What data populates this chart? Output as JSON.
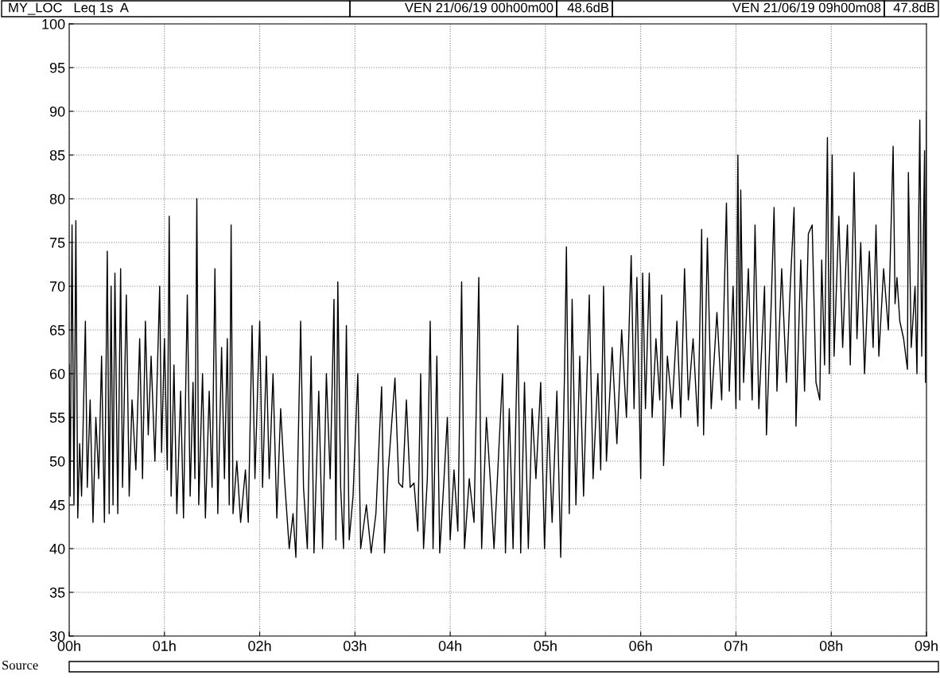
{
  "chart_data": {
    "type": "line",
    "annotations": [
      "MY_LOC   Leq 1s  A",
      "VEN 21/06/19 00h00m00",
      "48.6dB",
      "VEN 21/06/19 09h00m08",
      "47.8dB",
      "Source"
    ],
    "x": [
      0.0,
      0.01,
      0.03,
      0.05,
      0.07,
      0.09,
      0.11,
      0.13,
      0.17,
      0.19,
      0.22,
      0.25,
      0.28,
      0.31,
      0.34,
      0.37,
      0.4,
      0.42,
      0.44,
      0.46,
      0.48,
      0.51,
      0.54,
      0.56,
      0.6,
      0.63,
      0.66,
      0.7,
      0.74,
      0.77,
      0.8,
      0.83,
      0.86,
      0.9,
      0.95,
      0.97,
      1.0,
      1.03,
      1.05,
      1.07,
      1.1,
      1.13,
      1.17,
      1.2,
      1.24,
      1.27,
      1.3,
      1.32,
      1.34,
      1.36,
      1.4,
      1.43,
      1.47,
      1.5,
      1.53,
      1.56,
      1.6,
      1.63,
      1.66,
      1.68,
      1.7,
      1.72,
      1.76,
      1.8,
      1.85,
      1.88,
      1.92,
      1.95,
      2.0,
      2.03,
      2.07,
      2.1,
      2.14,
      2.18,
      2.22,
      2.26,
      2.31,
      2.35,
      2.38,
      2.43,
      2.46,
      2.5,
      2.54,
      2.57,
      2.62,
      2.66,
      2.7,
      2.74,
      2.78,
      2.8,
      2.82,
      2.85,
      2.88,
      2.91,
      2.94,
      2.98,
      3.03,
      3.06,
      3.12,
      3.17,
      3.22,
      3.28,
      3.31,
      3.35,
      3.42,
      3.46,
      3.5,
      3.54,
      3.58,
      3.62,
      3.66,
      3.69,
      3.72,
      3.76,
      3.79,
      3.82,
      3.86,
      3.89,
      3.93,
      3.97,
      4.0,
      4.04,
      4.08,
      4.12,
      4.15,
      4.2,
      4.25,
      4.3,
      4.33,
      4.38,
      4.42,
      4.46,
      4.5,
      4.55,
      4.58,
      4.62,
      4.66,
      4.71,
      4.74,
      4.78,
      4.82,
      4.86,
      4.9,
      4.95,
      4.99,
      5.03,
      5.07,
      5.12,
      5.16,
      5.2,
      5.22,
      5.25,
      5.28,
      5.32,
      5.36,
      5.4,
      5.46,
      5.5,
      5.55,
      5.58,
      5.61,
      5.64,
      5.7,
      5.75,
      5.8,
      5.85,
      5.9,
      5.93,
      5.96,
      6.0,
      6.02,
      6.05,
      6.09,
      6.12,
      6.16,
      6.2,
      6.22,
      6.24,
      6.28,
      6.33,
      6.38,
      6.42,
      6.46,
      6.5,
      6.55,
      6.6,
      6.64,
      6.66,
      6.7,
      6.74,
      6.8,
      6.85,
      6.9,
      6.93,
      6.97,
      7.0,
      7.02,
      7.04,
      7.05,
      7.08,
      7.13,
      7.17,
      7.2,
      7.24,
      7.3,
      7.32,
      7.37,
      7.4,
      7.43,
      7.48,
      7.53,
      7.57,
      7.61,
      7.63,
      7.68,
      7.72,
      7.76,
      7.8,
      7.84,
      7.88,
      7.9,
      7.93,
      7.96,
      7.98,
      8.01,
      8.03,
      8.08,
      8.12,
      8.17,
      8.2,
      8.24,
      8.27,
      8.31,
      8.35,
      8.4,
      8.44,
      8.47,
      8.5,
      8.55,
      8.6,
      8.65,
      8.67,
      8.69,
      8.72,
      8.76,
      8.8,
      8.81,
      8.84,
      8.88,
      8.9,
      8.93,
      8.95,
      8.98,
      8.99,
      9.0
    ],
    "series": [
      {
        "color": "#000000",
        "values": [
          61,
          46,
          77,
          45,
          77.5,
          43.5,
          52,
          46,
          66,
          47,
          57,
          43,
          55,
          48,
          62,
          43,
          74,
          44,
          70,
          45,
          71.5,
          44,
          72,
          47,
          69,
          46,
          57,
          49,
          64,
          48,
          66,
          53,
          62,
          50,
          70,
          51,
          64,
          49,
          78,
          46,
          61,
          44,
          58,
          43.5,
          69,
          46,
          59,
          48,
          80,
          45,
          60,
          43.5,
          58,
          47,
          72,
          44,
          63,
          48,
          64,
          45,
          77,
          44,
          50,
          43,
          49,
          43,
          65.5,
          48,
          66,
          47,
          62,
          48,
          60,
          43.5,
          56,
          48,
          40,
          44,
          39,
          66,
          47,
          40,
          62,
          39.5,
          58,
          40,
          60,
          48,
          68.5,
          41,
          70.5,
          47,
          40,
          65.5,
          41,
          46,
          60,
          40,
          45,
          39.5,
          44,
          58.5,
          39.5,
          49,
          59.5,
          47.5,
          47,
          57,
          47,
          47.5,
          42,
          60,
          40,
          48,
          66,
          40,
          62,
          39.5,
          47,
          55,
          41,
          49,
          42,
          70.5,
          40,
          48,
          43,
          71,
          40,
          55,
          48,
          40,
          49,
          60,
          39.5,
          56,
          40,
          65.5,
          39.5,
          59,
          40,
          56,
          48,
          59,
          40,
          55,
          43,
          58,
          39,
          60,
          74.5,
          44,
          68.5,
          45,
          62,
          46,
          69,
          48,
          60,
          49,
          70,
          50,
          63,
          52,
          65,
          55,
          73.5,
          56,
          71,
          48,
          71.5,
          56,
          71.5,
          55,
          64,
          57,
          69,
          49.5,
          62,
          56,
          66,
          55,
          72,
          57,
          64,
          54,
          76.5,
          53,
          75.5,
          56,
          67,
          57,
          79.5,
          58,
          70,
          56,
          85,
          57,
          81,
          59,
          72,
          57,
          77,
          56,
          70,
          53,
          68,
          79,
          58,
          72,
          59,
          70,
          79,
          54,
          73,
          58,
          76,
          77,
          59,
          57,
          73,
          61,
          87,
          60,
          85,
          62,
          78,
          63,
          77,
          61,
          83,
          64,
          75,
          60,
          74,
          63,
          77,
          62,
          72,
          65,
          86,
          68,
          71,
          66,
          64,
          60.5,
          83,
          63,
          70,
          60,
          89,
          62,
          85.5,
          59,
          90
        ]
      }
    ],
    "xlim": [
      0,
      9
    ],
    "xticks": [
      {
        "value": 0,
        "label": "00h"
      },
      {
        "value": 1,
        "label": "01h"
      },
      {
        "value": 2,
        "label": "02h"
      },
      {
        "value": 3,
        "label": "03h"
      },
      {
        "value": 4,
        "label": "04h"
      },
      {
        "value": 5,
        "label": "05h"
      },
      {
        "value": 6,
        "label": "06h"
      },
      {
        "value": 7,
        "label": "07h"
      },
      {
        "value": 8,
        "label": "08h"
      },
      {
        "value": 9,
        "label": "09h"
      }
    ],
    "ylim": [
      30,
      100
    ],
    "yticks": [
      30,
      35,
      40,
      45,
      50,
      55,
      60,
      65,
      70,
      75,
      80,
      85,
      90,
      95,
      100
    ],
    "grid": true,
    "line_style": "solid"
  }
}
